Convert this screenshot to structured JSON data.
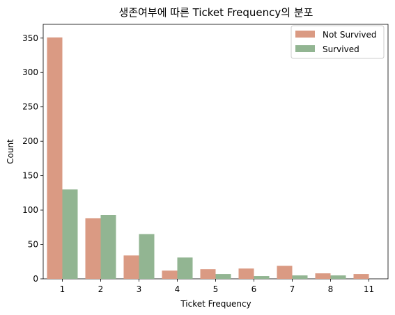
{
  "chart_data": {
    "type": "bar",
    "title": "생존여부에 따른 Ticket Frequency의 분포",
    "xlabel": "Ticket Frequency",
    "ylabel": "Count",
    "categories": [
      "1",
      "2",
      "3",
      "4",
      "5",
      "6",
      "7",
      "8",
      "11"
    ],
    "y_ticks": [
      "0",
      "50",
      "100",
      "150",
      "200",
      "250",
      "300",
      "350"
    ],
    "ylim": [
      0,
      370
    ],
    "grid": false,
    "legend_position": "top-right",
    "series": [
      {
        "name": "Not Survived",
        "color": "#da9a83",
        "values": [
          351,
          88,
          34,
          12,
          14,
          15,
          19,
          8,
          7
        ]
      },
      {
        "name": "Survived",
        "color": "#92b592",
        "values": [
          130,
          93,
          65,
          31,
          7,
          4,
          5,
          5,
          0
        ]
      }
    ]
  }
}
